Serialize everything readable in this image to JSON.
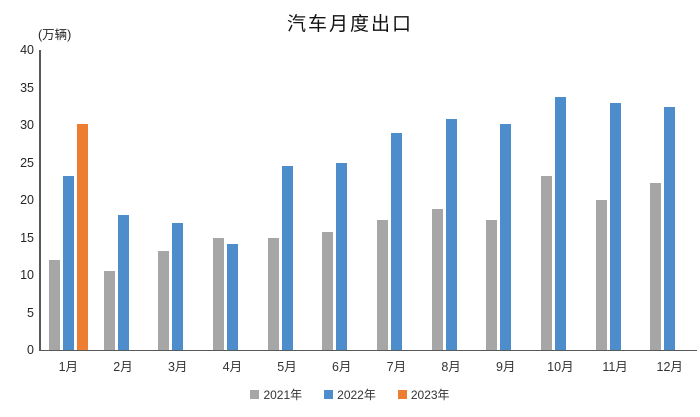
{
  "title": "汽车月度出口",
  "unit_label": "(万辆)",
  "chart_data": {
    "type": "bar",
    "title": "汽车月度出口",
    "ylabel": "(万辆)",
    "xlabel": "",
    "categories": [
      "1月",
      "2月",
      "3月",
      "4月",
      "5月",
      "6月",
      "7月",
      "8月",
      "9月",
      "10月",
      "11月",
      "12月"
    ],
    "series": [
      {
        "name": "2021年",
        "color": "#A6A6A6",
        "values": [
          12.0,
          10.5,
          13.2,
          15.0,
          15.0,
          15.8,
          17.4,
          18.8,
          17.3,
          23.2,
          20.0,
          22.3
        ]
      },
      {
        "name": "2022年",
        "color": "#4E8DCB",
        "values": [
          23.2,
          18.0,
          17.0,
          14.1,
          24.5,
          25.0,
          29.0,
          30.8,
          30.1,
          33.8,
          33.0,
          32.4
        ]
      },
      {
        "name": "2023年",
        "color": "#ED7D31",
        "values": [
          30.1,
          null,
          null,
          null,
          null,
          null,
          null,
          null,
          null,
          null,
          null,
          null
        ]
      }
    ],
    "ylim": [
      0,
      40
    ],
    "yticks": [
      0,
      5,
      10,
      15,
      20,
      25,
      30,
      35,
      40
    ],
    "grid": false,
    "legend_position": "bottom-center"
  },
  "colors": {
    "axis": "#595959",
    "tick_text": "#262626",
    "title_text": "#111111",
    "background": "#FFFFFF"
  }
}
